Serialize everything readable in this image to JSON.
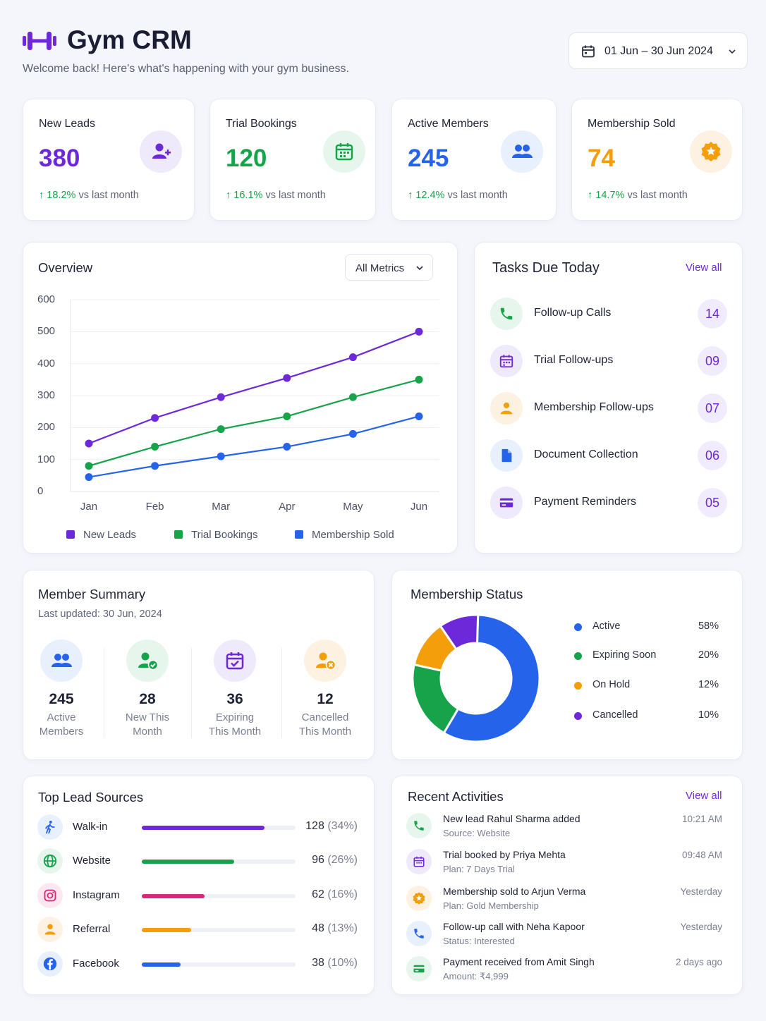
{
  "header": {
    "title": "Gym CRM",
    "subtitle": "Welcome back! Here's what's happening with your gym business.",
    "date_range": "01 Jun – 30 Jun 2024",
    "brand_color": "#6d28d9"
  },
  "stats": [
    {
      "title": "New Leads",
      "value": "380",
      "change": "18.2%",
      "suffix": "vs last month",
      "color": "#6d28d9",
      "icon": "user-plus-icon"
    },
    {
      "title": "Trial Bookings",
      "value": "120",
      "change": "16.1%",
      "suffix": "vs last month",
      "color": "#16a34a",
      "icon": "calendar-icon"
    },
    {
      "title": "Active Members",
      "value": "245",
      "change": "12.4%",
      "suffix": "vs last month",
      "color": "#2563eb",
      "icon": "users-icon"
    },
    {
      "title": "Membership Sold",
      "value": "74",
      "change": "14.7%",
      "suffix": "vs last month",
      "color": "#f59e0b",
      "icon": "badge-icon"
    }
  ],
  "overview": {
    "title": "Overview",
    "filter": "All Metrics"
  },
  "chart_data": {
    "type": "line",
    "title": "Overview",
    "categories": [
      "Jan",
      "Feb",
      "Mar",
      "Apr",
      "May",
      "Jun"
    ],
    "ylim": [
      0,
      600
    ],
    "yticks": [
      "600",
      "500",
      "400",
      "300",
      "200",
      "100",
      "0"
    ],
    "grid": true,
    "legend_position": "bottom",
    "series": [
      {
        "name": "New Leads",
        "color": "#6d28d9",
        "values": [
          150,
          230,
          295,
          355,
          420,
          500
        ]
      },
      {
        "name": "Trial Bookings",
        "color": "#16a34a",
        "values": [
          80,
          140,
          195,
          235,
          295,
          350
        ]
      },
      {
        "name": "Membership Sold",
        "color": "#2563eb",
        "values": [
          45,
          80,
          110,
          140,
          180,
          235
        ]
      }
    ]
  },
  "tasks": {
    "title": "Tasks Due Today",
    "view_all": "View all",
    "items": [
      {
        "label": "Follow-up Calls",
        "count": "14",
        "icon": "phone-icon",
        "color": "#16a34a",
        "bg": "#e6f6ec"
      },
      {
        "label": "Trial Follow-ups",
        "count": "09",
        "icon": "calendar-icon",
        "color": "#6d28d9",
        "bg": "#efe9fc"
      },
      {
        "label": "Membership Follow-ups",
        "count": "07",
        "icon": "user-icon",
        "color": "#f59e0b",
        "bg": "#fdf1e2"
      },
      {
        "label": "Document Collection",
        "count": "06",
        "icon": "document-icon",
        "color": "#2563eb",
        "bg": "#e8effd"
      },
      {
        "label": "Payment Reminders",
        "count": "05",
        "icon": "credit-card-icon",
        "color": "#6d28d9",
        "bg": "#efe9fc"
      }
    ]
  },
  "member_summary": {
    "title": "Member Summary",
    "updated": "Last updated: 30 Jun, 2024",
    "items": [
      {
        "value": "245",
        "line1": "Active",
        "line2": "Members",
        "icon": "users-icon"
      },
      {
        "value": "28",
        "line1": "New This",
        "line2": "Month",
        "icon": "user-check-icon"
      },
      {
        "value": "36",
        "line1": "Expiring",
        "line2": "This Month",
        "icon": "calendar-check-icon"
      },
      {
        "value": "12",
        "line1": "Cancelled",
        "line2": "This Month",
        "icon": "user-cancel-icon"
      }
    ]
  },
  "membership_status": {
    "title": "Membership Status",
    "items": [
      {
        "name": "Active",
        "percent": "58%",
        "value": 58,
        "color": "#2563eb"
      },
      {
        "name": "Expiring Soon",
        "percent": "20%",
        "value": 20,
        "color": "#16a34a"
      },
      {
        "name": "On Hold",
        "percent": "12%",
        "value": 12,
        "color": "#f59e0b"
      },
      {
        "name": "Cancelled",
        "percent": "10%",
        "value": 10,
        "color": "#6d28d9"
      }
    ]
  },
  "lead_sources": {
    "title": "Top Lead Sources",
    "items": [
      {
        "name": "Walk-in",
        "value": "128",
        "percent": "(34%)",
        "fill": 0.8,
        "color": "#6d28d9",
        "icon": "walk-icon"
      },
      {
        "name": "Website",
        "value": "96",
        "percent": "(26%)",
        "fill": 0.6,
        "color": "#16a34a",
        "icon": "globe-icon"
      },
      {
        "name": "Instagram",
        "value": "62",
        "percent": "(16%)",
        "fill": 0.41,
        "color": "#db2777",
        "icon": "instagram-icon"
      },
      {
        "name": "Referral",
        "value": "48",
        "percent": "(13%)",
        "fill": 0.32,
        "color": "#f59e0b",
        "icon": "user-icon"
      },
      {
        "name": "Facebook",
        "value": "38",
        "percent": "(10%)",
        "fill": 0.25,
        "color": "#2563eb",
        "icon": "facebook-icon"
      }
    ]
  },
  "activities": {
    "title": "Recent Activities",
    "view_all": "View all",
    "items": [
      {
        "text": "New lead Rahul Sharma added",
        "sub": "Source: Website",
        "time": "10:21 AM",
        "icon": "phone-icon"
      },
      {
        "text": "Trial booked by Priya Mehta",
        "sub": "Plan: 7 Days Trial",
        "time": "09:48 AM",
        "icon": "calendar-icon"
      },
      {
        "text": "Membership sold to Arjun Verma",
        "sub": "Plan: Gold Membership",
        "time": "Yesterday",
        "icon": "badge-icon"
      },
      {
        "text": "Follow-up call with Neha Kapoor",
        "sub": "Status: Interested",
        "time": "Yesterday",
        "icon": "phone-icon"
      },
      {
        "text": "Payment received from Amit Singh",
        "sub": "Amount: ₹4,999",
        "time": "2 days ago",
        "icon": "credit-card-icon"
      }
    ]
  }
}
